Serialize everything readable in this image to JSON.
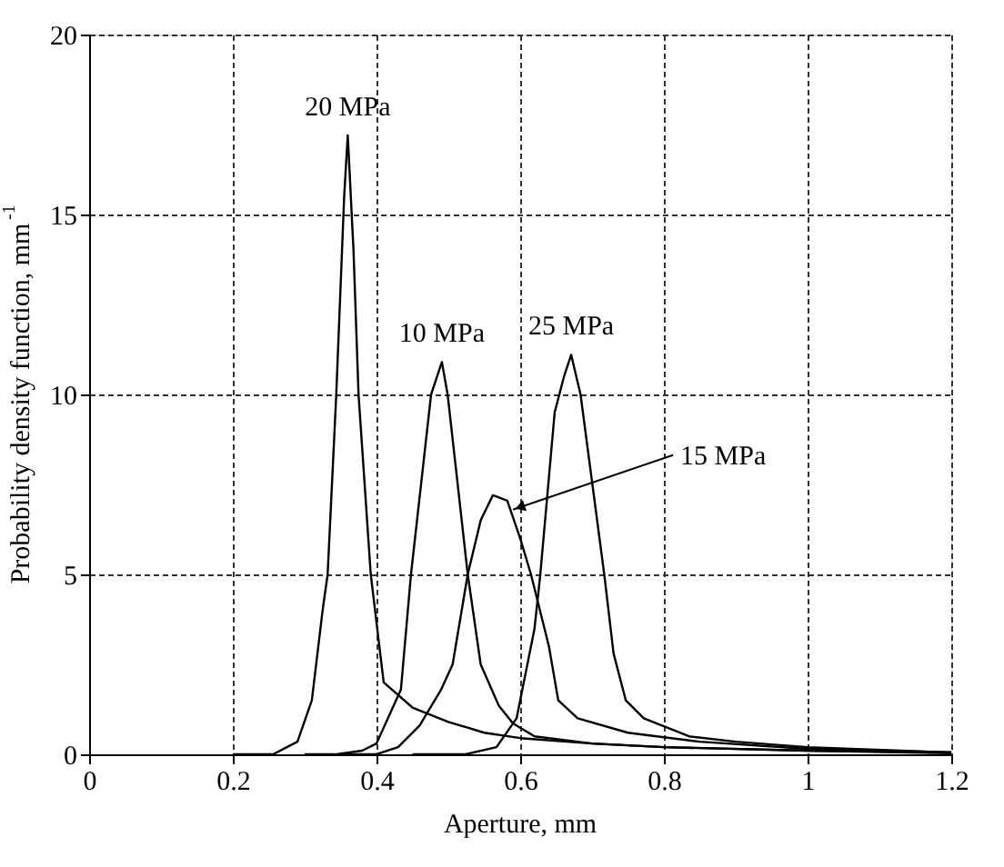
{
  "chart_data": {
    "type": "line",
    "xlabel": "Aperture, mm",
    "ylabel": "Probability density function, mm$^{-1}$",
    "xlim": [
      0,
      1.2
    ],
    "xticks": [
      0,
      0.2,
      0.4,
      0.6,
      0.8,
      1,
      1.2
    ],
    "ylim": [
      0,
      20
    ],
    "yticks": [
      0,
      5,
      10,
      15,
      20
    ],
    "grid": true,
    "marker": "none",
    "line_style": "solid",
    "series": [
      {
        "color": "#000000",
        "x": [
          0.2,
          0.256,
          0.29,
          0.31,
          0.325,
          0.332,
          0.344,
          0.355,
          0.36,
          0.368,
          0.375,
          0.392,
          0.41,
          0.45,
          0.5,
          0.55,
          0.6,
          0.7,
          0.8,
          1.0,
          1.2
        ],
        "values": [
          0,
          0,
          0.35,
          1.5,
          4.0,
          5.0,
          10.0,
          15.5,
          17.2,
          14.0,
          10.0,
          5.0,
          2.0,
          1.3,
          0.9,
          0.6,
          0.45,
          0.3,
          0.2,
          0.1,
          0.05
        ]
      },
      {
        "color": "#000000",
        "x": [
          0.3,
          0.344,
          0.38,
          0.4,
          0.434,
          0.448,
          0.476,
          0.491,
          0.499,
          0.527,
          0.545,
          0.57,
          0.59,
          0.62,
          0.7,
          0.8,
          1.0,
          1.2
        ],
        "values": [
          0,
          0,
          0.1,
          0.3,
          1.8,
          5.0,
          10.0,
          10.9,
          10.0,
          5.0,
          2.5,
          1.36,
          0.86,
          0.5,
          0.3,
          0.2,
          0.1,
          0.03
        ]
      },
      {
        "color": "#000000",
        "x": [
          0.35,
          0.4,
          0.43,
          0.46,
          0.49,
          0.506,
          0.527,
          0.545,
          0.562,
          0.582,
          0.6,
          0.615,
          0.64,
          0.653,
          0.68,
          0.75,
          0.85,
          1.0,
          1.2
        ],
        "values": [
          0,
          0,
          0.2,
          0.8,
          1.8,
          2.5,
          5.0,
          6.5,
          7.2,
          7.05,
          6.0,
          5.0,
          3.0,
          1.5,
          1.0,
          0.6,
          0.35,
          0.15,
          0.05
        ]
      },
      {
        "color": "#000000",
        "x": [
          0.45,
          0.524,
          0.567,
          0.595,
          0.62,
          0.628,
          0.648,
          0.661,
          0.671,
          0.684,
          0.717,
          0.73,
          0.747,
          0.772,
          0.835,
          0.9,
          1.0,
          1.2
        ],
        "values": [
          0,
          0,
          0.2,
          1.0,
          3.5,
          5.0,
          9.5,
          10.5,
          11.1,
          10.0,
          5.0,
          2.8,
          1.5,
          1.0,
          0.5,
          0.35,
          0.2,
          0.05
        ]
      }
    ],
    "annotations": [
      {
        "text": "20 MPa",
        "x": 0.36,
        "y": 17.2
      },
      {
        "text": "10 MPa",
        "x": 0.491,
        "y": 10.9
      },
      {
        "text": "25 MPa",
        "x": 0.671,
        "y": 11.1
      },
      {
        "text": "15 MPa",
        "x": 0.59,
        "y": 6.8
      }
    ]
  }
}
